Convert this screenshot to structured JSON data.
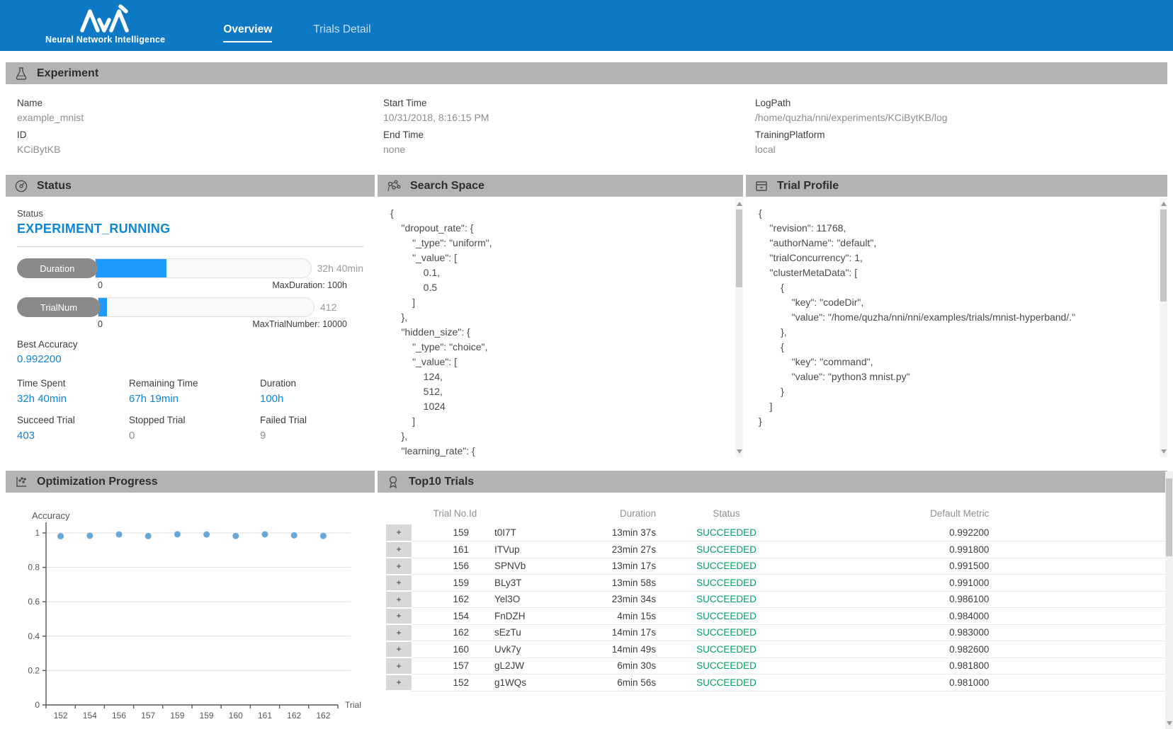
{
  "header": {
    "brand": "Neural Network Intelligence",
    "tabs": [
      {
        "label": "Overview",
        "active": true
      },
      {
        "label": "Trials Detail",
        "active": false
      }
    ]
  },
  "experiment": {
    "title": "Experiment",
    "fields": [
      {
        "label": "Name",
        "value": "example_mnist"
      },
      {
        "label": "ID",
        "value": "KCiBytKB"
      },
      {
        "label": "Start Time",
        "value": "10/31/2018, 8:16:15 PM"
      },
      {
        "label": "End Time",
        "value": "none"
      },
      {
        "label": "LogPath",
        "value": "/home/quzha/nni/experiments/KCiBytKB/log"
      },
      {
        "label": "TrainingPlatform",
        "value": "local"
      }
    ]
  },
  "status_panel": {
    "title": "Status",
    "status_label": "Status",
    "status_value": "EXPERIMENT_RUNNING",
    "bars": [
      {
        "label": "Duration",
        "right_value": "32h 40min",
        "min": "0",
        "max_label": "MaxDuration: 100h",
        "percent": 33
      },
      {
        "label": "TrialNum",
        "right_value": "412",
        "min": "0",
        "max_label": "MaxTrialNumber: 10000",
        "percent": 4
      }
    ],
    "best_accuracy": {
      "label": "Best Accuracy",
      "value": "0.992200"
    },
    "metrics": [
      {
        "label": "Time Spent",
        "value": "32h 40min",
        "accent": true
      },
      {
        "label": "Remaining Time",
        "value": "67h 19min",
        "accent": true
      },
      {
        "label": "Duration",
        "value": "100h",
        "accent": true
      },
      {
        "label": "Succeed Trial",
        "value": "403",
        "accent": true
      },
      {
        "label": "Stopped Trial",
        "value": "0",
        "accent": false
      },
      {
        "label": "Failed Trial",
        "value": "9",
        "accent": false
      }
    ]
  },
  "search_space": {
    "title": "Search Space",
    "code": "{\n    \"dropout_rate\": {\n        \"_type\": \"uniform\",\n        \"_value\": [\n            0.1,\n            0.5\n        ]\n    },\n    \"hidden_size\": {\n        \"_type\": \"choice\",\n        \"_value\": [\n            124,\n            512,\n            1024\n        ]\n    },\n    \"learning_rate\": {"
  },
  "trial_profile": {
    "title": "Trial Profile",
    "code": "{\n    \"revision\": 11768,\n    \"authorName\": \"default\",\n    \"trialConcurrency\": 1,\n    \"clusterMetaData\": [\n        {\n            \"key\": \"codeDir\",\n            \"value\": \"/home/quzha/nni/nni/examples/trials/mnist-hyperband/.\"\n        },\n        {\n            \"key\": \"command\",\n            \"value\": \"python3 mnist.py\"\n        }\n    ]\n}"
  },
  "optimization": {
    "title": "Optimization Progress"
  },
  "chart_data": {
    "type": "scatter",
    "title": "Accuracy",
    "xlabel": "Trial",
    "ylabel": "Accuracy",
    "categories": [
      "152",
      "154",
      "156",
      "157",
      "159",
      "159",
      "160",
      "161",
      "162",
      "162"
    ],
    "values": [
      0.981,
      0.984,
      0.9915,
      0.9818,
      0.9922,
      0.991,
      0.9826,
      0.9918,
      0.9861,
      0.983
    ],
    "yticks": [
      0,
      0.2,
      0.4,
      0.6,
      0.8,
      1
    ],
    "ylim": [
      0,
      1.05
    ],
    "grid": true,
    "legend": "none",
    "point_color": "#69a8d6"
  },
  "top10": {
    "title": "Top10 Trials",
    "expand_label": "+",
    "columns": [
      "Trial No.",
      "Id",
      "Duration",
      "Status",
      "Default Metric"
    ],
    "rows": [
      {
        "trial_no": "159",
        "id": "t0I7T",
        "duration": "13min 37s",
        "status": "SUCCEEDED",
        "metric": "0.992200"
      },
      {
        "trial_no": "161",
        "id": "ITVup",
        "duration": "23min 27s",
        "status": "SUCCEEDED",
        "metric": "0.991800"
      },
      {
        "trial_no": "156",
        "id": "SPNVb",
        "duration": "13min 17s",
        "status": "SUCCEEDED",
        "metric": "0.991500"
      },
      {
        "trial_no": "159",
        "id": "BLy3T",
        "duration": "13min 58s",
        "status": "SUCCEEDED",
        "metric": "0.991000"
      },
      {
        "trial_no": "162",
        "id": "Yel3O",
        "duration": "23min 34s",
        "status": "SUCCEEDED",
        "metric": "0.986100"
      },
      {
        "trial_no": "154",
        "id": "FnDZH",
        "duration": "4min 15s",
        "status": "SUCCEEDED",
        "metric": "0.984000"
      },
      {
        "trial_no": "162",
        "id": "sEzTu",
        "duration": "14min 17s",
        "status": "SUCCEEDED",
        "metric": "0.983000"
      },
      {
        "trial_no": "160",
        "id": "Uvk7y",
        "duration": "14min 49s",
        "status": "SUCCEEDED",
        "metric": "0.982600"
      },
      {
        "trial_no": "157",
        "id": "gL2JW",
        "duration": "6min 30s",
        "status": "SUCCEEDED",
        "metric": "0.981800"
      },
      {
        "trial_no": "152",
        "id": "g1WQs",
        "duration": "6min 56s",
        "status": "SUCCEEDED",
        "metric": "0.981000"
      }
    ]
  },
  "icons": {
    "experiment": "flask-icon",
    "status": "gauge-icon",
    "search_space": "nodes-icon",
    "trial_profile": "archive-icon",
    "optimization": "scatter-icon",
    "top10": "medal-icon"
  },
  "colors": {
    "header_blue": "#0d79c4",
    "section_gray": "#b3b3b3",
    "accent_blue": "#0e86d2",
    "progress_fill": "#1e9afe",
    "succeeded_green": "#00a160",
    "point_blue": "#69a8d6"
  }
}
